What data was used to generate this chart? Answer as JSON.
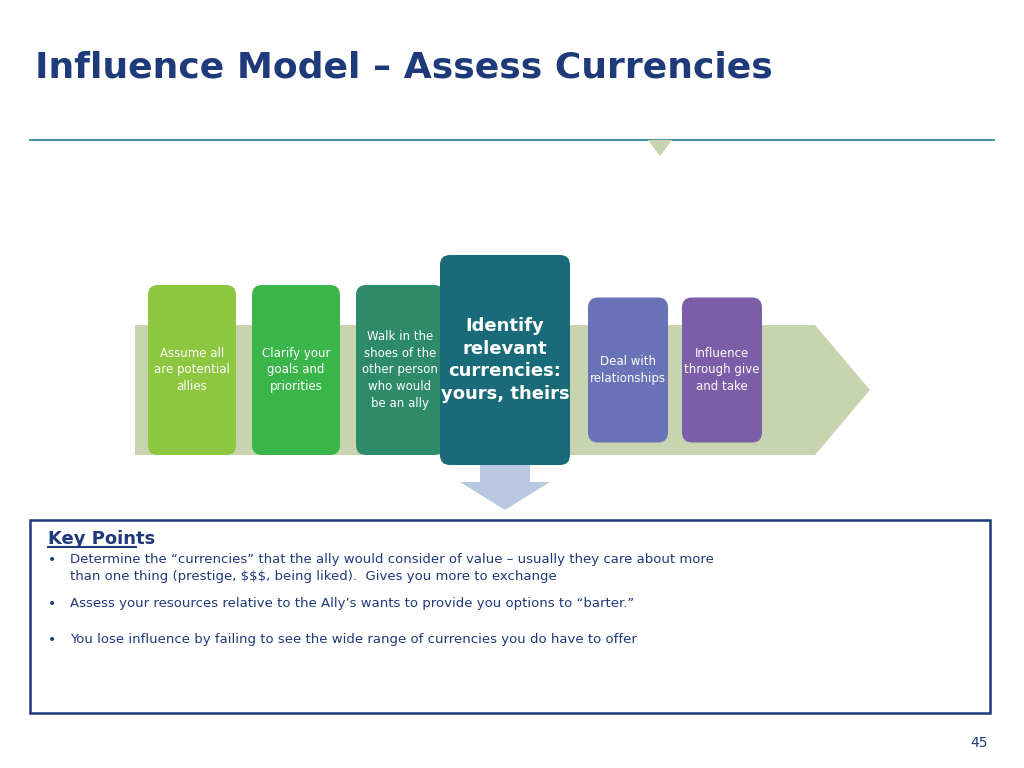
{
  "title": "Influence Model – Assess Currencies",
  "title_color": "#1F3A7A",
  "title_fontsize": 26,
  "bg_color": "#FFFFFF",
  "separator_color": "#4A90A4",
  "boxes": [
    {
      "label": "Assume all\nare potential\nallies",
      "color": "#8DC63F",
      "text_color": "#FFFFFF",
      "fontsize": 8.5,
      "bold": false
    },
    {
      "label": "Clarify your\ngoals and\npriorities",
      "color": "#3AB54A",
      "text_color": "#FFFFFF",
      "fontsize": 8.5,
      "bold": false
    },
    {
      "label": "Walk in the\nshoes of the\nother person\nwho would\nbe an ally",
      "color": "#2E8B6A",
      "text_color": "#FFFFFF",
      "fontsize": 8.5,
      "bold": false
    },
    {
      "label": "Identify\nrelevant\ncurrencies:\nyours, theirs",
      "color": "#1A6B7A",
      "text_color": "#FFFFFF",
      "fontsize": 13,
      "bold": true
    },
    {
      "label": "Deal with\nrelationships",
      "color": "#6B73B8",
      "text_color": "#FFFFFF",
      "fontsize": 8.5,
      "bold": false
    },
    {
      "label": "Influence\nthrough give\nand take",
      "color": "#7B5EA7",
      "text_color": "#FFFFFF",
      "fontsize": 8.5,
      "bold": false
    }
  ],
  "key_points_title": "Key Points",
  "key_points": [
    "Determine the “currencies” that the ally would consider of value – usually they care about more\nthan one thing (prestige, $$$, being liked).  Gives you more to exchange",
    "Assess your resources relative to the Ally’s wants to provide you options to “barter.”",
    "You lose influence by failing to see the wide range of currencies you do have to offer"
  ],
  "box_border_color": "#1F3A7A",
  "key_points_color": "#1F3A7A",
  "page_number": "45",
  "arrow_bg_color": "#C8D4B0",
  "down_arrow_color": "#B8C8E0"
}
